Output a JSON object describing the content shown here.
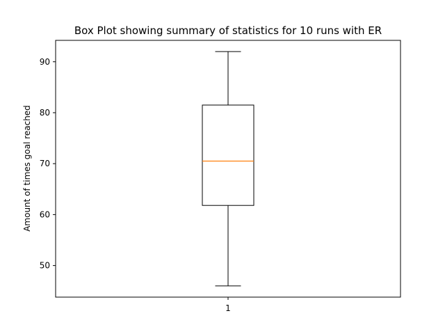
{
  "chart_data": {
    "type": "box",
    "title": "Box Plot showing summary of statistics for 10 runs with ER",
    "xlabel": "",
    "ylabel": "Amount of times goal reached",
    "categories": [
      "1"
    ],
    "boxes": [
      {
        "category": "1",
        "whisker_low": 46,
        "q1": 61.8,
        "median": 70.5,
        "q3": 81.5,
        "whisker_high": 92
      }
    ],
    "ylim": [
      43.8,
      94.2
    ],
    "yticks": [
      50,
      60,
      70,
      80,
      90
    ],
    "grid": false,
    "colors": {
      "box": "#000000",
      "median": "#ff7f0e"
    }
  }
}
